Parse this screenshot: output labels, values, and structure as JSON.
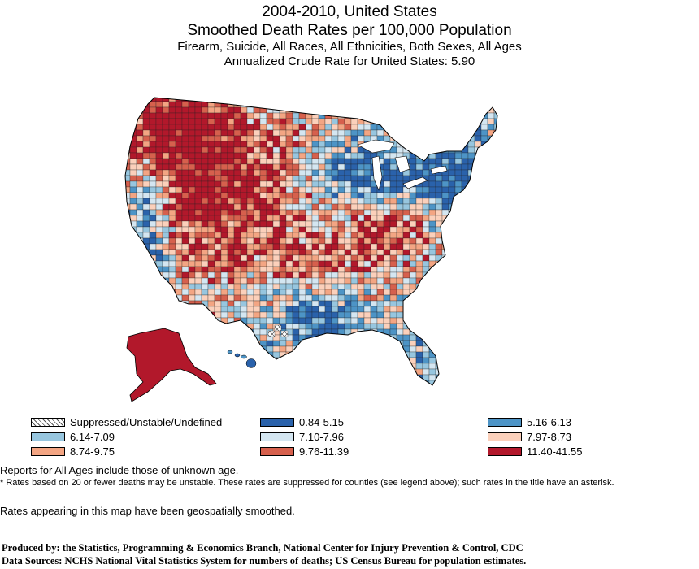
{
  "title": {
    "line1": "2004-2010, United States",
    "line2": "Smoothed  Death Rates per 100,000 Population",
    "line3": "Firearm, Suicide, All Races, All Ethnicities, Both Sexes, All Ages",
    "line4": "Annualized Crude Rate for United States: 5.90"
  },
  "colors": {
    "c0": "#2a62ab",
    "c1": "#4d94c6",
    "c2": "#97c6df",
    "c3": "#d4e6f1",
    "c4": "#fbd0bb",
    "c5": "#f3a583",
    "c6": "#d6604d",
    "c7": "#b2182b"
  },
  "legend": [
    {
      "label": "Suppressed/Unstable/Undefined",
      "color": "hatch"
    },
    {
      "label": "0.84-5.15",
      "color": "#2a62ab"
    },
    {
      "label": "5.16-6.13",
      "color": "#4d94c6"
    },
    {
      "label": "6.14-7.09",
      "color": "#97c6df"
    },
    {
      "label": "7.10-7.96",
      "color": "#d4e6f1"
    },
    {
      "label": "7.97-8.73",
      "color": "#fbd0bb"
    },
    {
      "label": "8.74-9.75",
      "color": "#f3a583"
    },
    {
      "label": "9.76-11.39",
      "color": "#d6604d"
    },
    {
      "label": "11.40-41.55",
      "color": "#b2182b"
    }
  ],
  "notes": {
    "n1": "Reports for All Ages include those of unknown age.",
    "n2": "* Rates based on 20 or fewer deaths may be unstable.  These rates are suppressed for counties (see legend above); such rates in the title have an asterisk.",
    "n3": "Rates appearing in this map have been geospatially smoothed."
  },
  "credits": {
    "c1": "Produced by: the Statistics, Programming & Economics Branch, National Center for Injury Prevention & Control, CDC",
    "c2": "Data Sources: NCHS National Vital Statistics System for numbers of deaths; US Census Bureau for population estimates."
  }
}
